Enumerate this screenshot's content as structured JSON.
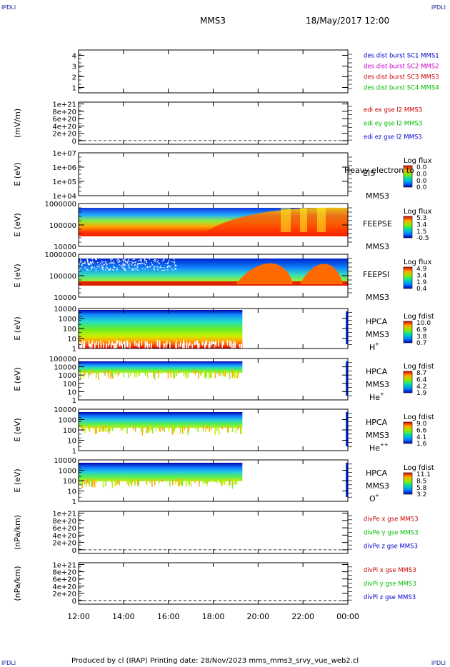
{
  "header": {
    "corner_label": "IPDLI",
    "title": "MMS3",
    "date_time": "18/May/2017 12:00"
  },
  "footer": {
    "text": "Produced by cl (IRAP)   Printing date: 28/Nov/2023   mms_mms3_srvy_vue_web2.cl"
  },
  "chart_data": [
    {
      "id": "p1",
      "type": "line",
      "ylabel": "",
      "ylim": [
        0.5,
        4.5
      ],
      "y_ticks": [
        "4",
        "3",
        "2",
        "1"
      ],
      "y_tick_values": [
        4,
        3,
        2,
        1
      ],
      "legend": [
        {
          "text": "des dist burst SC1 MMS1",
          "color": "#0000cc"
        },
        {
          "text": "des dist burst SC2 MMS2",
          "color": "#cc00cc"
        },
        {
          "text": "des dist burst SC3 MMS3",
          "color": "#cc0000"
        },
        {
          "text": "des dist burst SC4 MMS4",
          "color": "#00bb00"
        }
      ],
      "series": []
    },
    {
      "id": "p2",
      "type": "line",
      "ylabel": "(mV/m)",
      "y_ticks": [
        "1e+21",
        "8e+20",
        "6e+20",
        "4e+20",
        "2e+20",
        "0"
      ],
      "y_tick_values": [
        1e+21,
        8e+20,
        6e+20,
        4e+20,
        2e+20,
        0
      ],
      "ylim": [
        -1e+20,
        1.05e+21
      ],
      "zero_line": true,
      "legend": [
        {
          "text": "edi ex gse l2 MMS3",
          "color": "#cc0000"
        },
        {
          "text": "edi ey gse l2 MMS3",
          "color": "#00bb00"
        },
        {
          "text": "edi ez gse l2 MMS3",
          "color": "#0000cc"
        }
      ]
    },
    {
      "id": "p3",
      "type": "heatmap",
      "ylabel": "E (eV)",
      "y_ticks": [
        "1e+07",
        "1e+06",
        "1e+05",
        "1e+04"
      ],
      "y_tick_values": [
        7,
        6,
        5,
        4
      ],
      "instrument": "EIS",
      "spacecraft": "MMS3",
      "extra_label": "Heavy electron to",
      "colorbar": {
        "title": "Log flux",
        "labels": [
          "0.0",
          "0.0",
          "0.0",
          "0.0"
        ]
      }
    },
    {
      "id": "p4",
      "type": "heatmap",
      "ylabel": "E (eV)",
      "y_ticks": [
        "1000000",
        "100000",
        "10000"
      ],
      "y_tick_values": [
        6,
        5,
        4
      ],
      "instrument": "FEEPSE",
      "spacecraft": "MMS3",
      "colorbar": {
        "title": "Log flux",
        "labels": [
          "5.3",
          "3.4",
          "1.5",
          "-0.5"
        ]
      }
    },
    {
      "id": "p5",
      "type": "heatmap",
      "ylabel": "E (eV)",
      "y_ticks": [
        "1000000",
        "100000",
        "10000"
      ],
      "y_tick_values": [
        6,
        5,
        4
      ],
      "instrument": "FEEPSI",
      "spacecraft": "MMS3",
      "colorbar": {
        "title": "Log flux",
        "labels": [
          "4.9",
          "3.4",
          "1.9",
          "0.4"
        ]
      }
    },
    {
      "id": "p6",
      "type": "heatmap",
      "ylabel": "E (eV)",
      "y_ticks": [
        "10000",
        "1000",
        "100",
        "10",
        "1"
      ],
      "y_tick_values": [
        4,
        3,
        2,
        1,
        0
      ],
      "instrument": "HPCA",
      "spacecraft": "MMS3",
      "species": "H",
      "charge": "+",
      "colorbar": {
        "title": "Log fdist",
        "labels": [
          "10.0",
          "6.9",
          "3.8",
          "0.7"
        ]
      }
    },
    {
      "id": "p7",
      "type": "heatmap",
      "ylabel": "E (eV)",
      "y_ticks": [
        "100000",
        "10000",
        "1000",
        "100",
        "10",
        "1"
      ],
      "y_tick_values": [
        5,
        4,
        3,
        2,
        1,
        0
      ],
      "instrument": "HPCA",
      "spacecraft": "MMS3",
      "species": "He",
      "charge": "+",
      "colorbar": {
        "title": "Log fdist",
        "labels": [
          "8.7",
          "6.4",
          "4.2",
          "1.9"
        ]
      }
    },
    {
      "id": "p8",
      "type": "heatmap",
      "ylabel": "E (eV)",
      "y_ticks": [
        "10000",
        "1000",
        "100",
        "10",
        "1"
      ],
      "y_tick_values": [
        4,
        3,
        2,
        1,
        0
      ],
      "instrument": "HPCA",
      "spacecraft": "MMS3",
      "species": "He",
      "charge": "++",
      "colorbar": {
        "title": "Log fdist",
        "labels": [
          "9.0",
          "6.6",
          "4.1",
          "1.6"
        ]
      }
    },
    {
      "id": "p9",
      "type": "heatmap",
      "ylabel": "E (eV)",
      "y_ticks": [
        "10000",
        "1000",
        "100",
        "10",
        "1"
      ],
      "y_tick_values": [
        4,
        3,
        2,
        1,
        0
      ],
      "instrument": "HPCA",
      "spacecraft": "MMS3",
      "species": "O",
      "charge": "+",
      "colorbar": {
        "title": "Log fdist",
        "labels": [
          "11.1",
          "8.5",
          "5.8",
          "3.2"
        ]
      }
    },
    {
      "id": "p10",
      "type": "line",
      "ylabel": "(nPa/km)",
      "y_ticks": [
        "1e+21",
        "8e+20",
        "6e+20",
        "4e+20",
        "2e+20",
        "0"
      ],
      "y_tick_values": [
        1e+21,
        8e+20,
        6e+20,
        4e+20,
        2e+20,
        0
      ],
      "ylim": [
        -1e+20,
        1.05e+21
      ],
      "zero_line": true,
      "legend": [
        {
          "text": "divPe x gse MMS3",
          "color": "#cc0000"
        },
        {
          "text": "divPe y gse MMS3",
          "color": "#00bb00"
        },
        {
          "text": "divPe z gse MMS3",
          "color": "#0000cc"
        }
      ]
    },
    {
      "id": "p11",
      "type": "line",
      "ylabel": "(nPa/km)",
      "y_ticks": [
        "1e+21",
        "8e+20",
        "6e+20",
        "4e+20",
        "2e+20",
        "0"
      ],
      "y_tick_values": [
        1e+21,
        8e+20,
        6e+20,
        4e+20,
        2e+20,
        0
      ],
      "ylim": [
        -1e+20,
        1.05e+21
      ],
      "zero_line": true,
      "legend": [
        {
          "text": "divPi x gse MMS3",
          "color": "#cc0000"
        },
        {
          "text": "divPi y gse MMS3",
          "color": "#00bb00"
        },
        {
          "text": "divPi z gse MMS3",
          "color": "#0000cc"
        }
      ]
    }
  ],
  "x_axis": {
    "ticks": [
      "12:00",
      "14:00",
      "16:00",
      "18:00",
      "20:00",
      "22:00",
      "00:00"
    ],
    "range_hours": [
      12,
      24
    ],
    "hpca_data_end_hour": 19.3
  }
}
